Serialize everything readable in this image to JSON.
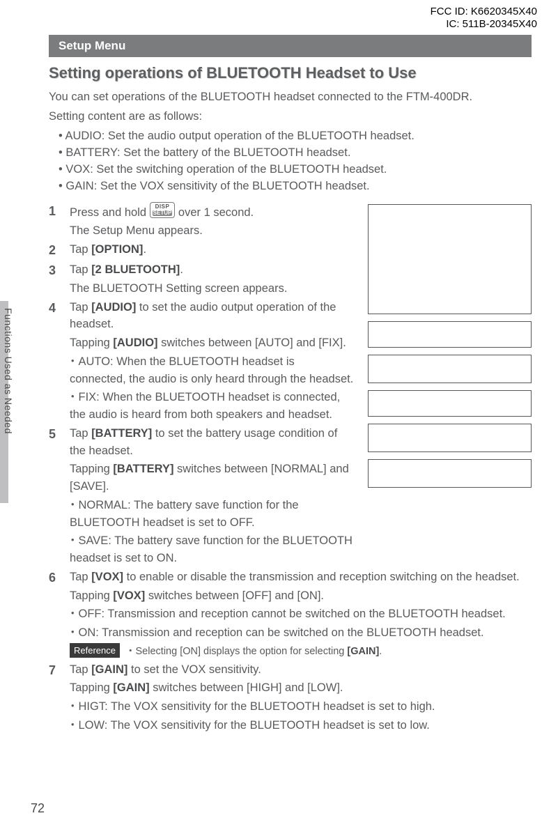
{
  "header": {
    "fcc_line1": "FCC ID: K6620345X40",
    "fcc_line2": "IC: 511B-20345X40"
  },
  "setup_bar": "Setup Menu",
  "section_title": "Setting operations of BLUETOOTH Headset to Use",
  "intro_line1": "You can set operations of the BLUETOOTH headset connected to the FTM-400DR.",
  "intro_line2": "Setting content are as follows:",
  "intro_items": {
    "i1": "AUDIO: Set the audio output operation of the BLUETOOTH headset.",
    "i2": "BATTERY: Set the battery of the BLUETOOTH headset.",
    "i3": "VOX: Set the switching operation of the BLUETOOTH headset.",
    "i4": "GAIN: Set the VOX sensitivity of the BLUETOOTH headset."
  },
  "disp_icon": {
    "top": "DISP",
    "bot": "SETUP"
  },
  "steps": {
    "s1a": "Press and hold ",
    "s1b": " over 1 second.",
    "s1c": "The Setup Menu appears.",
    "s2a": "Tap ",
    "s2b": "[OPTION]",
    "s2c": ".",
    "s3a": "Tap ",
    "s3b": "[2 BLUETOOTH]",
    "s3c": ".",
    "s3d": "The BLUETOOTH Setting screen appears.",
    "s4a": "Tap ",
    "s4b": "[AUDIO]",
    "s4c": " to set the audio output operation of the headset.",
    "s4d1": "Tapping ",
    "s4d2": "[AUDIO]",
    "s4d3": " switches between [AUTO] and [FIX].",
    "s4e": "AUTO: When the BLUETOOTH headset is connected, the audio is only heard through the headset.",
    "s4f": "FIX: When the BLUETOOTH headset is connected, the audio is heard from both speakers and headset.",
    "s5a": "Tap ",
    "s5b": "[BATTERY]",
    "s5c": " to set the battery usage condition of the headset.",
    "s5d1": "Tapping ",
    "s5d2": "[BATTERY]",
    "s5d3": " switches between [NORMAL] and [SAVE].",
    "s5e": "NORMAL: The battery save function for the BLUETOOTH headset is set to OFF.",
    "s5f": "SAVE: The battery save function for the BLUETOOTH headset is set to ON.",
    "s6a": "Tap ",
    "s6b": "[VOX]",
    "s6c": " to enable or disable the transmission and reception switching on the headset.",
    "s6d1": "Tapping ",
    "s6d2": "[VOX]",
    "s6d3": " switches between [OFF] and [ON].",
    "s6e": "OFF: Transmission and reception cannot be switched on the BLUETOOTH headset.",
    "s6f": "ON: Transmission and reception can be switched on the BLUETOOTH headset.",
    "ref_label": "Reference",
    "s6g1": " ・Selecting [ON] displays the option for selecting ",
    "s6g2": "[GAIN]",
    "s6g3": ".",
    "s7a": "Tap ",
    "s7b": "[GAIN]",
    "s7c": " to set the VOX sensitivity.",
    "s7d1": "Tapping ",
    "s7d2": "[GAIN]",
    "s7d3": " switches between [HIGH] and [LOW].",
    "s7e": "HIGT: The VOX sensitivity for the BLUETOOTH headset is set to high.",
    "s7f": "LOW: The VOX sensitivity for the BLUETOOTH headset is set to low."
  },
  "side_tab": "Functions Used as Needed",
  "page_number": "72",
  "nums": {
    "n1": "1",
    "n2": "2",
    "n3": "3",
    "n4": "4",
    "n5": "5",
    "n6": "6",
    "n7": "7"
  }
}
